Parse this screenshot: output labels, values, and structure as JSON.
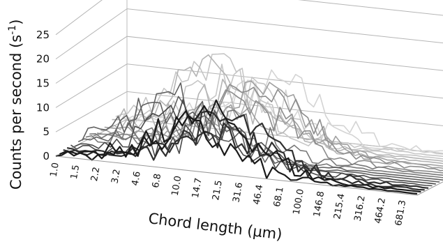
{
  "chart_data": {
    "type": "line",
    "subtype": "3d-waterfall",
    "title": "",
    "xlabel": "Chord length (μm)",
    "ylabel": "Counts per second (s-1)",
    "ylabel_main": "Counts per second (s",
    "ylabel_sup": "-1",
    "ylabel_close": ")",
    "x_scale": "log",
    "x_tick_labels": [
      "1.0",
      "1.5",
      "2.2",
      "3.2",
      "4.6",
      "6.8",
      "10.0",
      "14.7",
      "21.5",
      "31.6",
      "46.4",
      "68.1",
      "100.0",
      "146.8",
      "215.4",
      "316.2",
      "464.2",
      "681.3"
    ],
    "y_ticks": [
      0,
      5,
      10,
      15,
      20,
      25
    ],
    "ylim": [
      0,
      25
    ],
    "series_count": 20,
    "grid": true,
    "legend": "none",
    "peak_chord_length": 31.6,
    "peak_value_approx": 17,
    "colors": [
      "#1a1a1a",
      "#303030",
      "#484848",
      "#606060",
      "#787878",
      "#8c8c8c",
      "#a0a0a0",
      "#b4b4b4",
      "#c6c6c6",
      "#d4d4d4"
    ]
  }
}
